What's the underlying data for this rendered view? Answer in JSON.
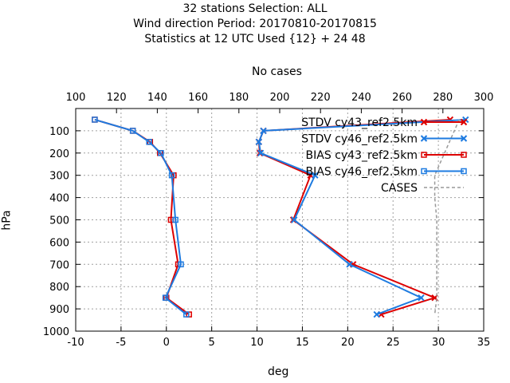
{
  "chart_data": {
    "type": "line",
    "title": [
      "32 stations Selection: ALL",
      "Wind direction  Period: 20170810-20170815",
      "Statistics at 12 UTC  Used {12} + 24 48"
    ],
    "xlabel": "deg",
    "ylabel": "hPa",
    "x2label": "No cases",
    "xlim": [
      -10,
      35
    ],
    "x2lim": [
      100,
      300
    ],
    "ylim": [
      1000,
      0
    ],
    "xticks": [
      "-10",
      "-5",
      "0",
      "5",
      "10",
      "15",
      "20",
      "25",
      "30",
      "35"
    ],
    "x2ticks": [
      "100",
      "120",
      "140",
      "160",
      "180",
      "200",
      "220",
      "240",
      "260",
      "280",
      "300"
    ],
    "yticks": [
      "100",
      "200",
      "300",
      "400",
      "500",
      "600",
      "700",
      "800",
      "900",
      "1000"
    ],
    "grid": true,
    "legend_position": "top-right",
    "series": [
      {
        "name": "STDV cy43_ref2.5km",
        "color": "#dd0000",
        "marker": "x",
        "points": [
          [
            31.3,
            50
          ],
          [
            10.7,
            100
          ],
          [
            10.2,
            150
          ],
          [
            10.3,
            200
          ],
          [
            15.9,
            300
          ],
          [
            14.0,
            500
          ],
          [
            20.6,
            700
          ],
          [
            29.6,
            850
          ],
          [
            23.7,
            925
          ]
        ]
      },
      {
        "name": "STDV cy46_ref2.5km",
        "color": "#1e7be0",
        "marker": "x",
        "points": [
          [
            33.0,
            50
          ],
          [
            10.7,
            100
          ],
          [
            10.2,
            150
          ],
          [
            10.4,
            200
          ],
          [
            16.4,
            300
          ],
          [
            14.1,
            500
          ],
          [
            20.2,
            700
          ],
          [
            28.1,
            850
          ],
          [
            23.2,
            925
          ]
        ]
      },
      {
        "name": "BIAS cy43_ref2.5km",
        "color": "#dd0000",
        "marker": "square",
        "points": [
          [
            -7.9,
            50
          ],
          [
            -3.7,
            100
          ],
          [
            -1.8,
            150
          ],
          [
            -0.7,
            200
          ],
          [
            0.8,
            300
          ],
          [
            0.5,
            500
          ],
          [
            1.3,
            700
          ],
          [
            0.0,
            850
          ],
          [
            2.5,
            925
          ]
        ]
      },
      {
        "name": "BIAS cy46_ref2.5km",
        "color": "#1e7be0",
        "marker": "square",
        "points": [
          [
            -7.9,
            50
          ],
          [
            -3.7,
            100
          ],
          [
            -1.9,
            150
          ],
          [
            -0.6,
            200
          ],
          [
            0.6,
            300
          ],
          [
            1.0,
            500
          ],
          [
            1.6,
            700
          ],
          [
            -0.1,
            850
          ],
          [
            2.2,
            925
          ]
        ]
      },
      {
        "name": "CASES",
        "color": "#999999",
        "marker": "none",
        "dashed": true,
        "axis": "x2",
        "points": [
          [
            288,
            50
          ],
          [
            276,
            300
          ],
          [
            276,
            400
          ],
          [
            277,
            500
          ],
          [
            277,
            700
          ],
          [
            277,
            850
          ],
          [
            276,
            925
          ]
        ]
      }
    ]
  }
}
